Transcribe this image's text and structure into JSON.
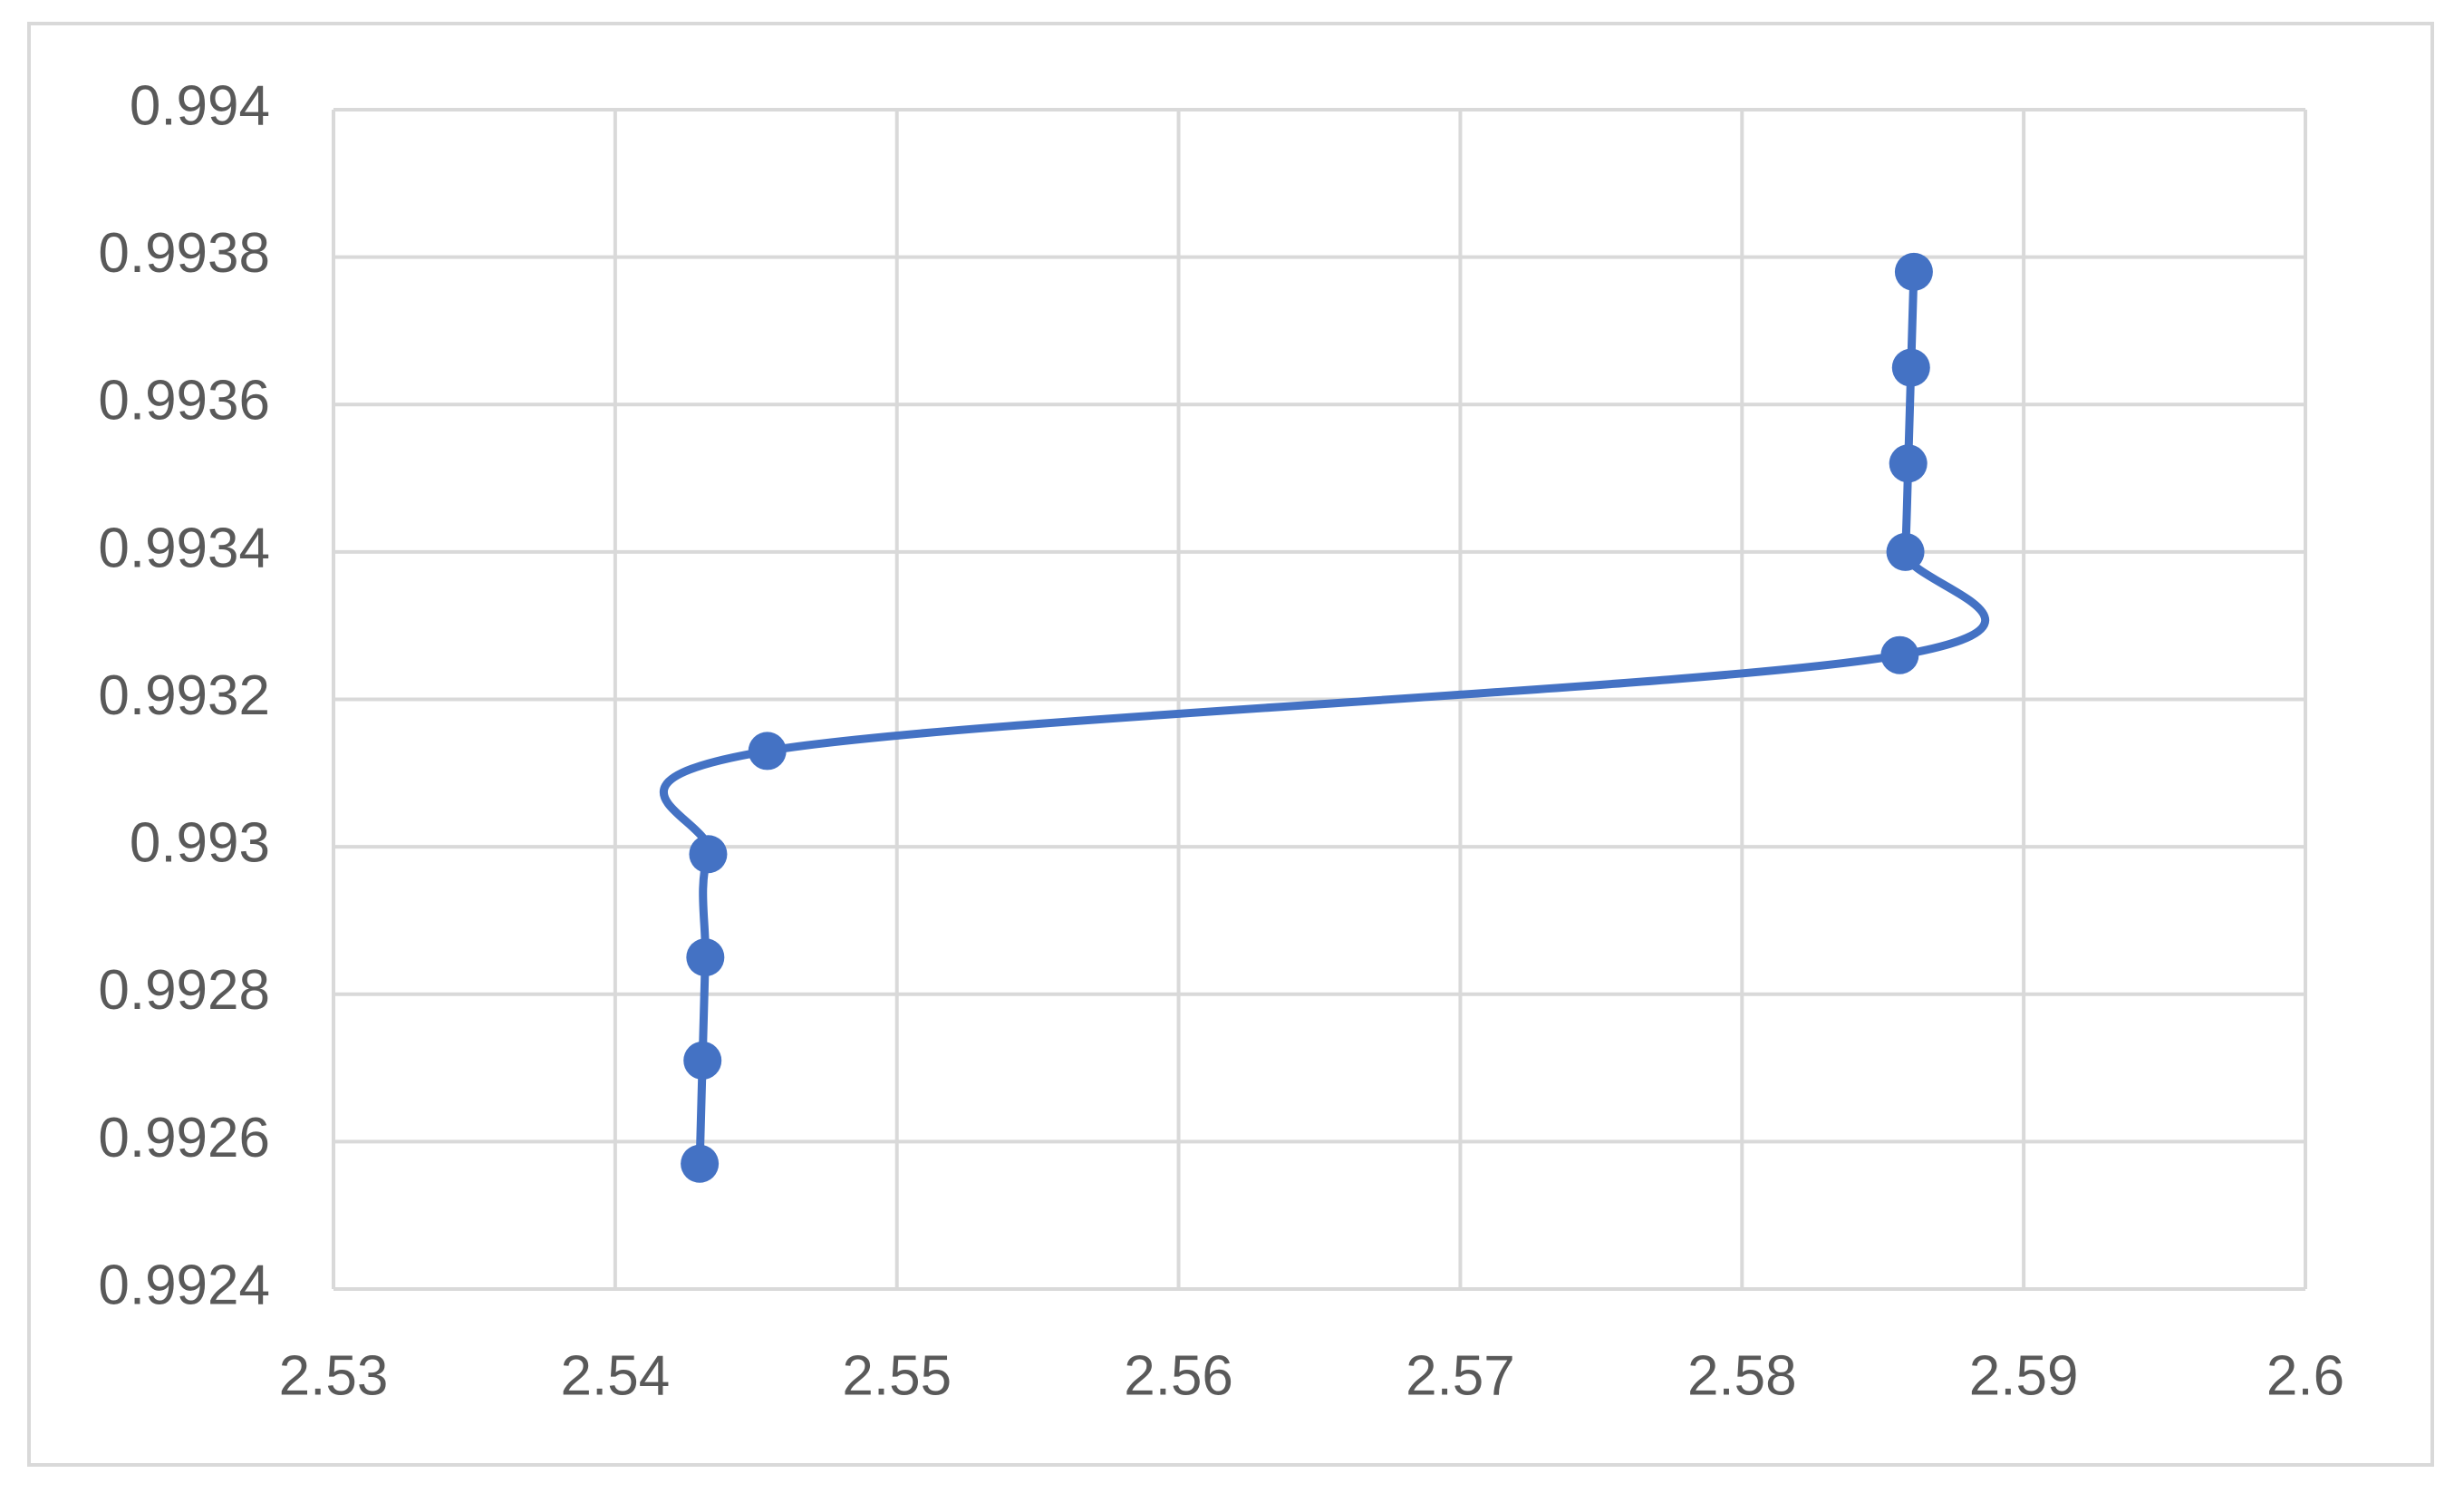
{
  "chart_data": {
    "type": "scatter-smooth",
    "series": [
      {
        "color": "#4472c4",
        "x": [
          2.543,
          2.5431,
          2.5432,
          2.5433,
          2.5454,
          2.5856,
          2.5858,
          2.5859,
          2.586,
          2.5861
        ],
        "values": [
          0.99257,
          0.99271,
          0.99285,
          0.99299,
          0.99313,
          0.99326,
          0.9934,
          0.99352,
          0.99365,
          0.99378
        ]
      }
    ],
    "xlim": [
      2.53,
      2.6
    ],
    "xticks": [
      2.53,
      2.54,
      2.55,
      2.56,
      2.57,
      2.58,
      2.59,
      2.6
    ],
    "ylim": [
      0.9924,
      0.994
    ],
    "yticks": [
      0.9924,
      0.9926,
      0.9928,
      0.993,
      0.9932,
      0.9934,
      0.9936,
      0.9938,
      0.994
    ],
    "grid": true
  }
}
